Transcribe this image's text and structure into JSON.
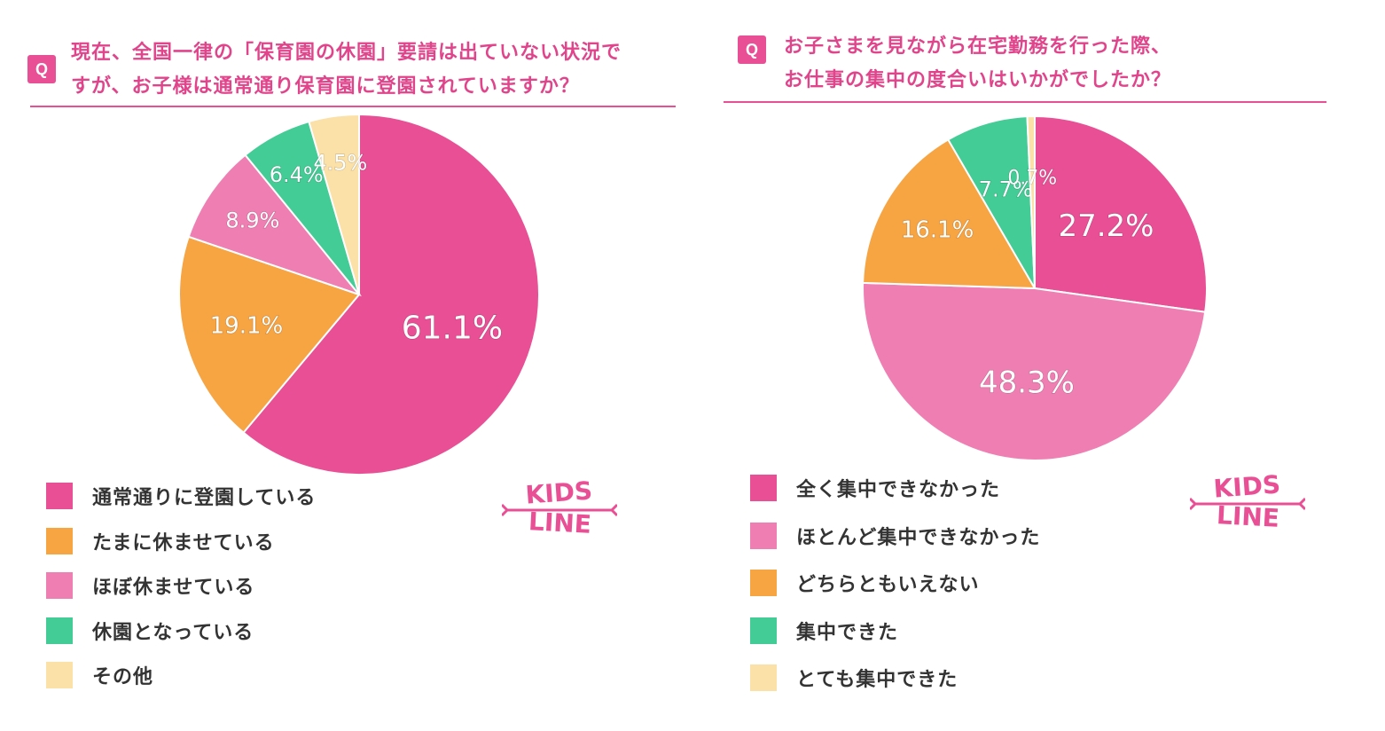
{
  "colors": {
    "pink_dark": "#e94f95",
    "pink_light": "#ef7fb2",
    "orange": "#f7a443",
    "green": "#43cc95",
    "cream": "#fbe0a8",
    "accent": "#e94f95"
  },
  "brand": {
    "logo_line1": "KIDS",
    "logo_line2": "LINE"
  },
  "chart_data": [
    {
      "type": "pie",
      "question": {
        "badge": "Q",
        "line1": "現在、全国一律の「保育園の休園」要請は出ていない状況で",
        "line2": "すが、お子様は通常通り保育園に登園されていますか？"
      },
      "slices": [
        {
          "label": "通常通りに登園している",
          "value": 61.1,
          "display": "61.1%",
          "color": "#e94f95"
        },
        {
          "label": "たまに休ませている",
          "value": 19.1,
          "display": "19.1%",
          "color": "#f7a443"
        },
        {
          "label": "ほぼ休ませている",
          "value": 8.9,
          "display": "8.9%",
          "color": "#ef7fb2"
        },
        {
          "label": "休園となっている",
          "value": 6.4,
          "display": "6.4%",
          "color": "#43cc95"
        },
        {
          "label": "その他",
          "value": 4.5,
          "display": "4.5%",
          "color": "#fbe0a8"
        }
      ]
    },
    {
      "type": "pie",
      "question": {
        "badge": "Q",
        "line1": "お子さまを見ながら在宅勤務を行った際、",
        "line2": "お仕事の集中の度合いはいかがでしたか？"
      },
      "slices": [
        {
          "label": "全く集中できなかった",
          "value": 27.2,
          "display": "27.2%",
          "color": "#e94f95"
        },
        {
          "label": "ほとんど集中できなかった",
          "value": 48.3,
          "display": "48.3%",
          "color": "#ef7fb2"
        },
        {
          "label": "どちらともいえない",
          "value": 16.1,
          "display": "16.1%",
          "color": "#f7a443"
        },
        {
          "label": "集中できた",
          "value": 7.7,
          "display": "7.7%",
          "color": "#43cc95"
        },
        {
          "label": "とても集中できた",
          "value": 0.7,
          "display": "0.7%",
          "color": "#fbe0a8"
        }
      ]
    }
  ]
}
